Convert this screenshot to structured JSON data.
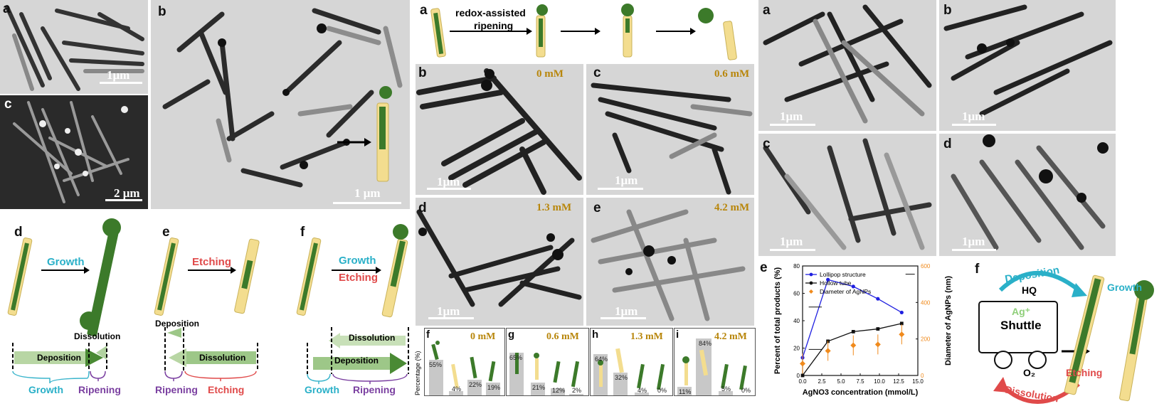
{
  "left": {
    "labels": {
      "a": "a",
      "b": "b",
      "c": "c",
      "d": "d",
      "e": "e",
      "f": "f"
    },
    "scale_a": "1μm",
    "scale_c": "2 μm",
    "scale_b": "1 μm",
    "d": {
      "arrow": "Growth",
      "dissolution": "Dissolution",
      "deposition": "Deposition",
      "brace1": "Growth",
      "brace2": "Ripening"
    },
    "e": {
      "arrow": "Etching",
      "deposition": "Deposition",
      "dissolution": "Dissolution",
      "brace1": "Ripening",
      "brace2": "Etching"
    },
    "f": {
      "arrow1": "Growth",
      "arrow2": "Etching",
      "dissolution": "Dissolution",
      "deposition": "Deposition",
      "brace1": "Growth",
      "brace2": "Ripening"
    }
  },
  "middle": {
    "a_label": "a",
    "scheme_text1": "redox-assisted",
    "scheme_text2": "ripening",
    "panels": [
      {
        "label": "b",
        "conc": "0 mM",
        "scale": "1μm"
      },
      {
        "label": "c",
        "conc": "0.6 mM",
        "scale": "1μm"
      },
      {
        "label": "d",
        "conc": "1.3 mM",
        "scale": "1μm"
      },
      {
        "label": "e",
        "conc": "4.2 mM",
        "scale": "1μm"
      }
    ],
    "percentage_axis": "Percentage (%)",
    "mini": [
      {
        "label": "f",
        "conc": "0 mM",
        "pcts": [
          "55%",
          "4%",
          "22%",
          "19%"
        ]
      },
      {
        "label": "g",
        "conc": "0.6 mM",
        "pcts": [
          "65%",
          "21%",
          "12%",
          "2%"
        ]
      },
      {
        "label": "h",
        "conc": "1.3 mM",
        "pcts": [
          "64%",
          "32%",
          "4%",
          "0%"
        ]
      },
      {
        "label": "i",
        "conc": "4.2 mM",
        "pcts": [
          "11%",
          "84%",
          "5%",
          "0%"
        ]
      }
    ]
  },
  "right": {
    "panels": [
      {
        "label": "a",
        "scale": "1μm"
      },
      {
        "label": "b",
        "scale": "1μm"
      },
      {
        "label": "c",
        "scale": "1μm"
      },
      {
        "label": "d",
        "scale": "1μm"
      }
    ],
    "e_label": "e",
    "f_label": "f",
    "f_scheme": {
      "deposition": "Deposition",
      "hq": "HQ",
      "growth": "Growth",
      "ag": "Ag⁺",
      "shuttle": "Shuttle",
      "o2": "O₂",
      "etching": "Etching",
      "dissolution": "Dissolution"
    }
  },
  "chart_data": {
    "type": "line",
    "xlabel": "AgNO3 concentration (mmol/L)",
    "ylabel": "Percent of total products (%)",
    "y2label": "Diameter of AgNPs (nm)",
    "xlim": [
      0,
      15
    ],
    "ylim": [
      0,
      80
    ],
    "y2lim": [
      0,
      600
    ],
    "xticks": [
      "0.0",
      "2.5",
      "5.0",
      "7.5",
      "10.0",
      "12.5",
      "15.0"
    ],
    "yticks": [
      "0",
      "20",
      "40",
      "60",
      "80"
    ],
    "y2ticks": [
      "0",
      "200",
      "400",
      "600"
    ],
    "legend_position": "top-left",
    "series": [
      {
        "name": "Lollipop structure",
        "color": "#1f1fe0",
        "axis": "left",
        "x": [
          0,
          3.3,
          6.6,
          9.8,
          12.9
        ],
        "y": [
          13,
          70,
          65,
          56,
          46
        ]
      },
      {
        "name": "Hollow tube",
        "color": "#111111",
        "axis": "left",
        "x": [
          0,
          3.3,
          6.6,
          9.8,
          12.9
        ],
        "y": [
          0,
          25,
          32,
          34,
          38
        ]
      },
      {
        "name": "Diameter of AgNPs",
        "color": "#f08a1c",
        "axis": "right",
        "x": [
          0,
          3.3,
          6.6,
          9.8,
          12.9
        ],
        "y": [
          65,
          135,
          165,
          170,
          225
        ]
      }
    ]
  }
}
